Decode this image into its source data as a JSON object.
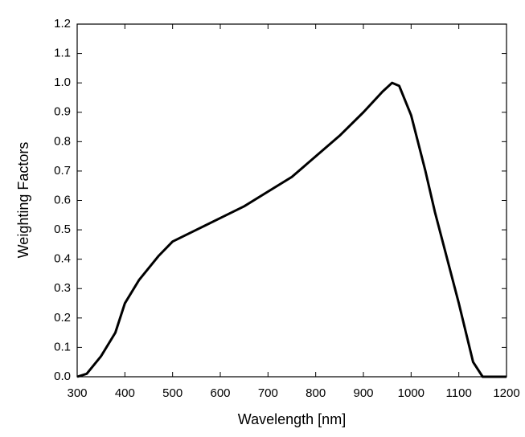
{
  "chart_data": {
    "type": "line",
    "xlabel": "Wavelength [nm]",
    "ylabel": "Weighting Factors",
    "x": [
      300,
      320,
      350,
      380,
      400,
      430,
      470,
      500,
      550,
      600,
      650,
      700,
      750,
      800,
      850,
      900,
      940,
      960,
      975,
      1000,
      1030,
      1050,
      1100,
      1130,
      1150,
      1200
    ],
    "series": [
      {
        "color": "#000000",
        "values": [
          0,
          0.01,
          0.07,
          0.15,
          0.25,
          0.33,
          0.41,
          0.46,
          0.5,
          0.54,
          0.58,
          0.63,
          0.68,
          0.75,
          0.82,
          0.9,
          0.97,
          1.0,
          0.99,
          0.89,
          0.7,
          0.56,
          0.25,
          0.05,
          0,
          0
        ]
      }
    ],
    "xlim": [
      300,
      1200
    ],
    "ylim": [
      0,
      1.2
    ],
    "xticks": [
      300,
      400,
      500,
      600,
      700,
      800,
      900,
      1000,
      1100,
      1200
    ],
    "yticks": [
      {
        "value": 0,
        "label": "0.0"
      },
      0.1,
      0.2,
      0.3,
      0.4,
      0.5,
      0.6,
      0.7,
      0.8,
      0.9,
      {
        "value": 1,
        "label": "1.0"
      },
      1.1,
      1.2
    ]
  }
}
